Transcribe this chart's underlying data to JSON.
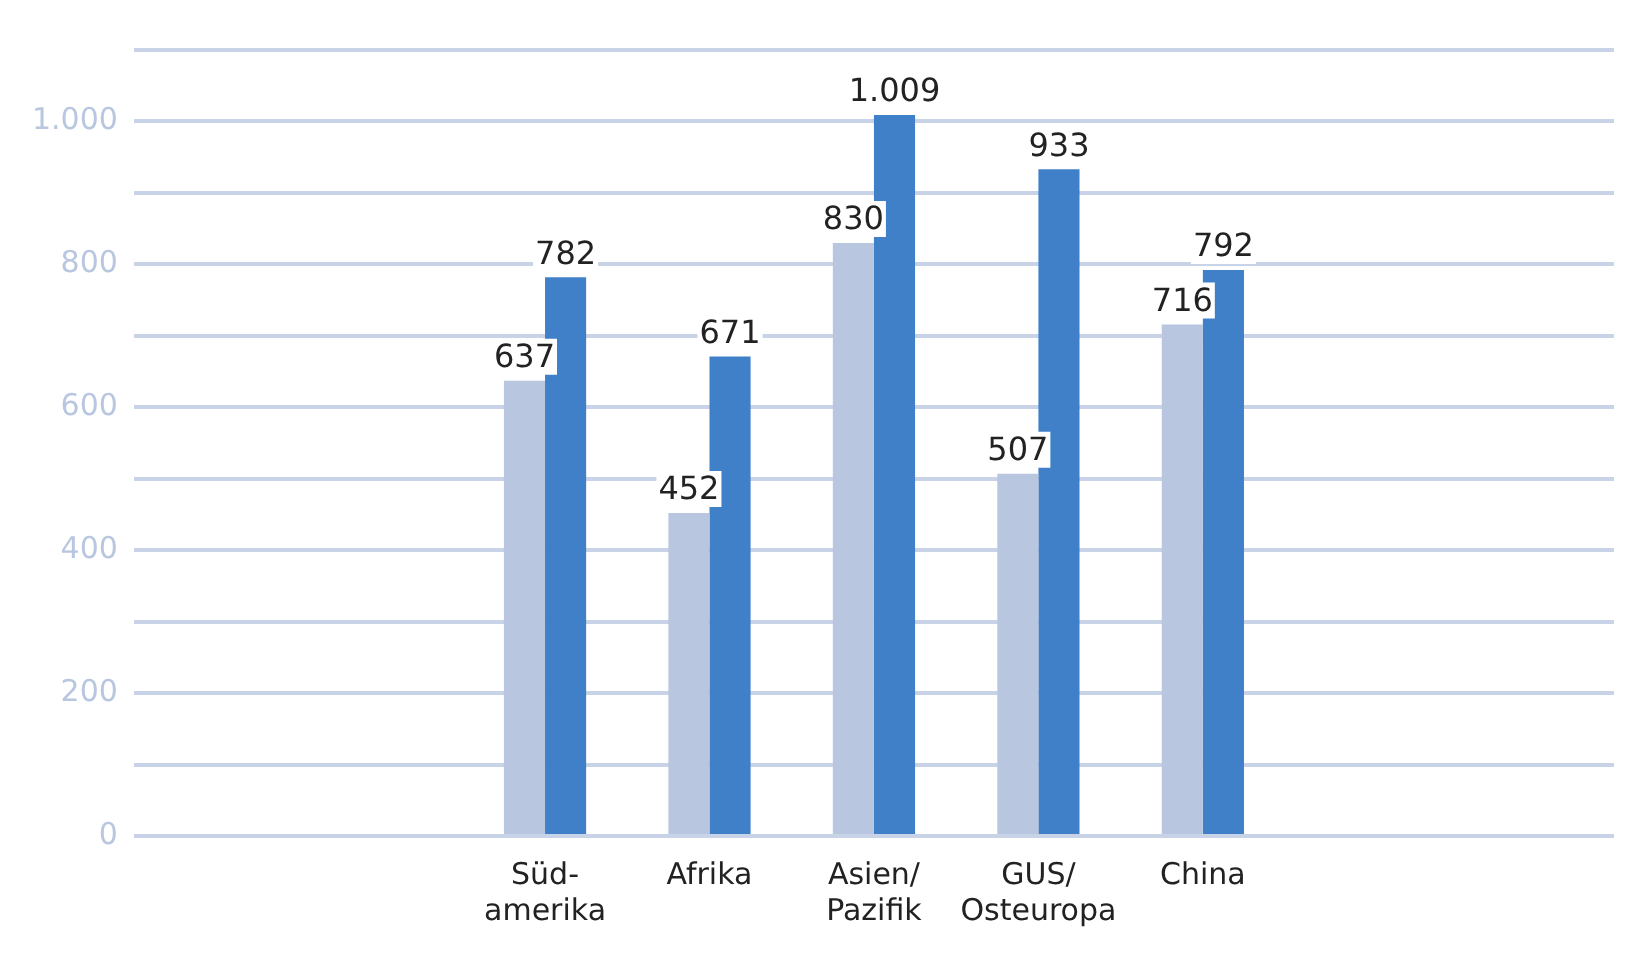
{
  "chart_data": {
    "type": "bar",
    "categories": [
      null,
      null,
      "Süd-\namerika",
      "Afrika",
      "Asien/\nPazifik",
      "GUS/\nOsteuropa",
      "China",
      null,
      null
    ],
    "series": [
      {
        "color": "#b8c6e0",
        "values": [
          null,
          null,
          637,
          452,
          830,
          507,
          716,
          null,
          null
        ],
        "value_labels": [
          null,
          null,
          "637",
          "452",
          "830",
          "507",
          "716",
          null,
          null
        ]
      },
      {
        "color": "#4080c8",
        "values": [
          null,
          null,
          782,
          671,
          1009,
          933,
          792,
          null,
          null
        ],
        "value_labels": [
          null,
          null,
          "782",
          "671",
          "1.009",
          "933",
          "792",
          null,
          null
        ]
      }
    ],
    "ylim": [
      0,
      1100
    ],
    "yticks": [
      0,
      {
        "value": 100,
        "label": null
      },
      200,
      {
        "value": 300,
        "label": null
      },
      400,
      {
        "value": 500,
        "label": null
      },
      600,
      {
        "value": 700,
        "label": null
      },
      800,
      {
        "value": 900,
        "label": null
      },
      {
        "value": 1000,
        "label": "1.000"
      },
      {
        "value": 1100,
        "label": null
      }
    ],
    "grid": "y",
    "legend": false
  }
}
